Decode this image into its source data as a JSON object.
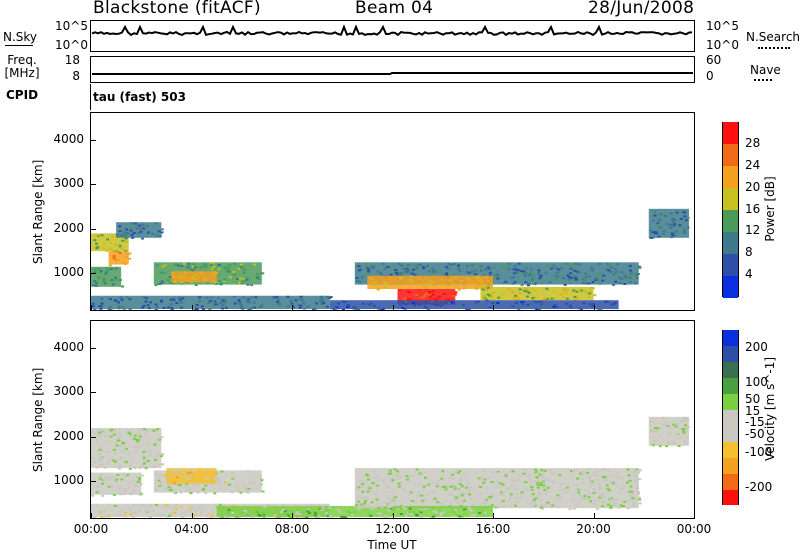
{
  "header": {
    "station": "Blackstone (fitACF)",
    "beam": "Beam 04",
    "date": "28/Jun/2008"
  },
  "top_panels": {
    "nsky_label": "N.Sky",
    "nsearch_label": "N.Search",
    "noise_ticks": [
      "10^5",
      "10^0"
    ],
    "freq_label_line1": "Freq.",
    "freq_label_line2": "[MHz]",
    "freq_ticks": [
      "18",
      "8"
    ],
    "nave_label": "Nave",
    "nave_ticks": [
      "60",
      "0"
    ],
    "cpid_label": "CPID",
    "cpid_value": "tau (fast) 503"
  },
  "chart_data": [
    {
      "type": "heatmap",
      "parameter": "Power",
      "ylabel": "Slant Range [km]",
      "xlabel": "",
      "x_range": [
        0,
        24
      ],
      "ylim": [
        180,
        4600
      ],
      "yticks": [
        "1000",
        "2000",
        "3000",
        "4000"
      ],
      "colorbar_label": "Power [dB]",
      "colorbar_ticks": [
        "4",
        "8",
        "12",
        "16",
        "20",
        "24",
        "28"
      ],
      "colorbar_range": [
        0,
        32
      ],
      "colors": [
        "#0a2fe0",
        "#2e4fa8",
        "#3c7a8c",
        "#4a9a5a",
        "#c8c020",
        "#f4a020",
        "#f06a18",
        "#ff1010"
      ],
      "regions": [
        {
          "t0": 0.0,
          "t1": 1.5,
          "r0": 1500,
          "r1": 1900,
          "level": 16
        },
        {
          "t0": 0.7,
          "t1": 1.5,
          "r0": 1200,
          "r1": 1500,
          "level": 22
        },
        {
          "t0": 1.0,
          "t1": 2.8,
          "r0": 1800,
          "r1": 2150,
          "level": 9
        },
        {
          "t0": 0.0,
          "t1": 1.2,
          "r0": 700,
          "r1": 1150,
          "level": 12
        },
        {
          "t0": 2.5,
          "t1": 6.8,
          "r0": 750,
          "r1": 1250,
          "level": 14
        },
        {
          "t0": 3.2,
          "t1": 5.0,
          "r0": 800,
          "r1": 1050,
          "level": 20
        },
        {
          "t0": 0.0,
          "t1": 9.5,
          "r0": 200,
          "r1": 500,
          "level": 8
        },
        {
          "t0": 10.5,
          "t1": 21.8,
          "r0": 750,
          "r1": 1250,
          "level": 10
        },
        {
          "t0": 11.0,
          "t1": 16.0,
          "r0": 650,
          "r1": 950,
          "level": 20
        },
        {
          "t0": 12.2,
          "t1": 14.5,
          "r0": 300,
          "r1": 650,
          "level": 29
        },
        {
          "t0": 15.5,
          "t1": 20.0,
          "r0": 400,
          "r1": 700,
          "level": 17
        },
        {
          "t0": 9.5,
          "t1": 21.0,
          "r0": 200,
          "r1": 400,
          "level": 7
        },
        {
          "t0": 22.2,
          "t1": 23.8,
          "r0": 1800,
          "r1": 2450,
          "level": 9
        }
      ]
    },
    {
      "type": "heatmap",
      "parameter": "Velocity",
      "ylabel": "Slant Range [km]",
      "xlabel": "Time UT",
      "x_range": [
        0,
        24
      ],
      "xticks": [
        "00:00",
        "04:00",
        "08:00",
        "12:00",
        "16:00",
        "20:00",
        "00:00"
      ],
      "ylim": [
        180,
        4600
      ],
      "yticks": [
        "1000",
        "2000",
        "3000",
        "4000"
      ],
      "colorbar_label": "Velocity [m s^-1]",
      "colorbar_ticks": [
        "200",
        "100",
        "50",
        "15",
        "-15",
        "-50",
        "-100",
        "-200"
      ],
      "colorbar_range": [
        -250,
        250
      ],
      "colors": [
        "#ff1010",
        "#f06a18",
        "#f4a020",
        "#f4c030",
        "#c8c8c0",
        "#c8c8c0",
        "#7ad040",
        "#4aa040",
        "#3a7050",
        "#2e4fa8",
        "#0a2fe0"
      ],
      "regions": [
        {
          "t0": 0.0,
          "t1": 2.8,
          "r0": 1300,
          "r1": 2200,
          "level": 0
        },
        {
          "t0": 0.0,
          "t1": 2.0,
          "r0": 700,
          "r1": 1200,
          "level": 0
        },
        {
          "t0": 2.5,
          "t1": 6.8,
          "r0": 750,
          "r1": 1250,
          "level": -10
        },
        {
          "t0": 3.0,
          "t1": 5.0,
          "r0": 950,
          "r1": 1300,
          "level": -70
        },
        {
          "t0": 0.0,
          "t1": 9.5,
          "r0": 200,
          "r1": 500,
          "level": -25
        },
        {
          "t0": 5.0,
          "t1": 12.0,
          "r0": 200,
          "r1": 450,
          "level": 35
        },
        {
          "t0": 10.5,
          "t1": 21.8,
          "r0": 400,
          "r1": 1300,
          "level": 0
        },
        {
          "t0": 12.0,
          "t1": 16.0,
          "r0": 200,
          "r1": 450,
          "level": 35
        },
        {
          "t0": 22.2,
          "t1": 23.8,
          "r0": 1800,
          "r1": 2450,
          "level": 0
        }
      ]
    }
  ]
}
